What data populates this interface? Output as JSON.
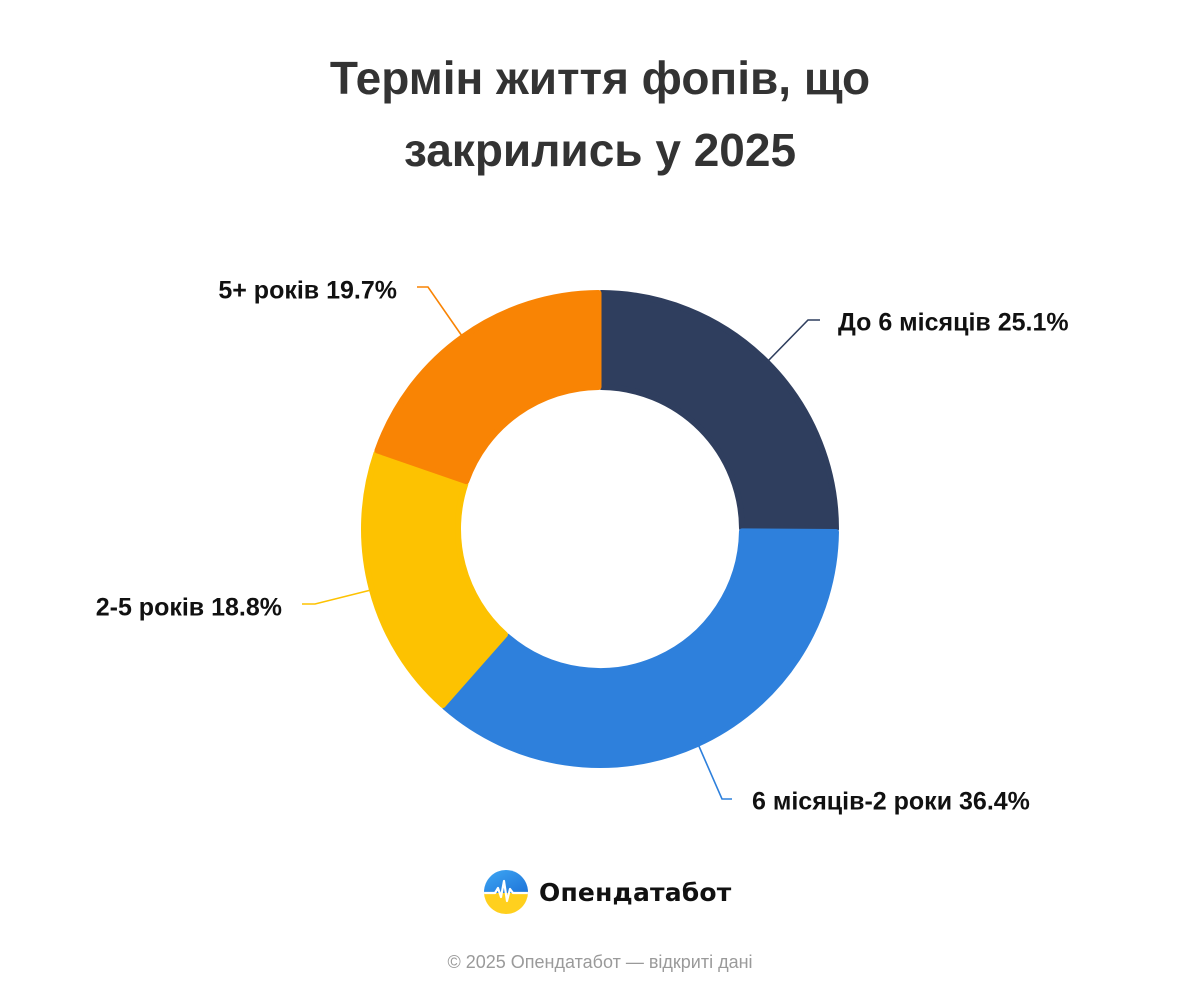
{
  "title": {
    "line1": "Термін життя фопів, що",
    "line2": "закрились у 2025"
  },
  "chart_data": {
    "type": "pie",
    "donut": true,
    "unit": "%",
    "slices": [
      {
        "label": "До 6 місяців",
        "value": 25.1,
        "display": "До 6 місяців 25.1%",
        "color": "#2f3e5e"
      },
      {
        "label": "6 місяців-2 роки",
        "value": 36.4,
        "display": "6 місяців-2 роки 36.4%",
        "color": "#2e80dc"
      },
      {
        "label": "2-5 років",
        "value": 18.8,
        "display": "2-5 років 18.8%",
        "color": "#fdc201"
      },
      {
        "label": "5+ років",
        "value": 19.7,
        "display": "5+ років 19.7%",
        "color": "#f98404"
      }
    ],
    "legend": "none"
  },
  "brand": {
    "name": "Опендатабот",
    "logo_icon": "opendatabot-logo-icon"
  },
  "footer": {
    "text": "© 2025 Опендатабот — відкриті дані"
  }
}
